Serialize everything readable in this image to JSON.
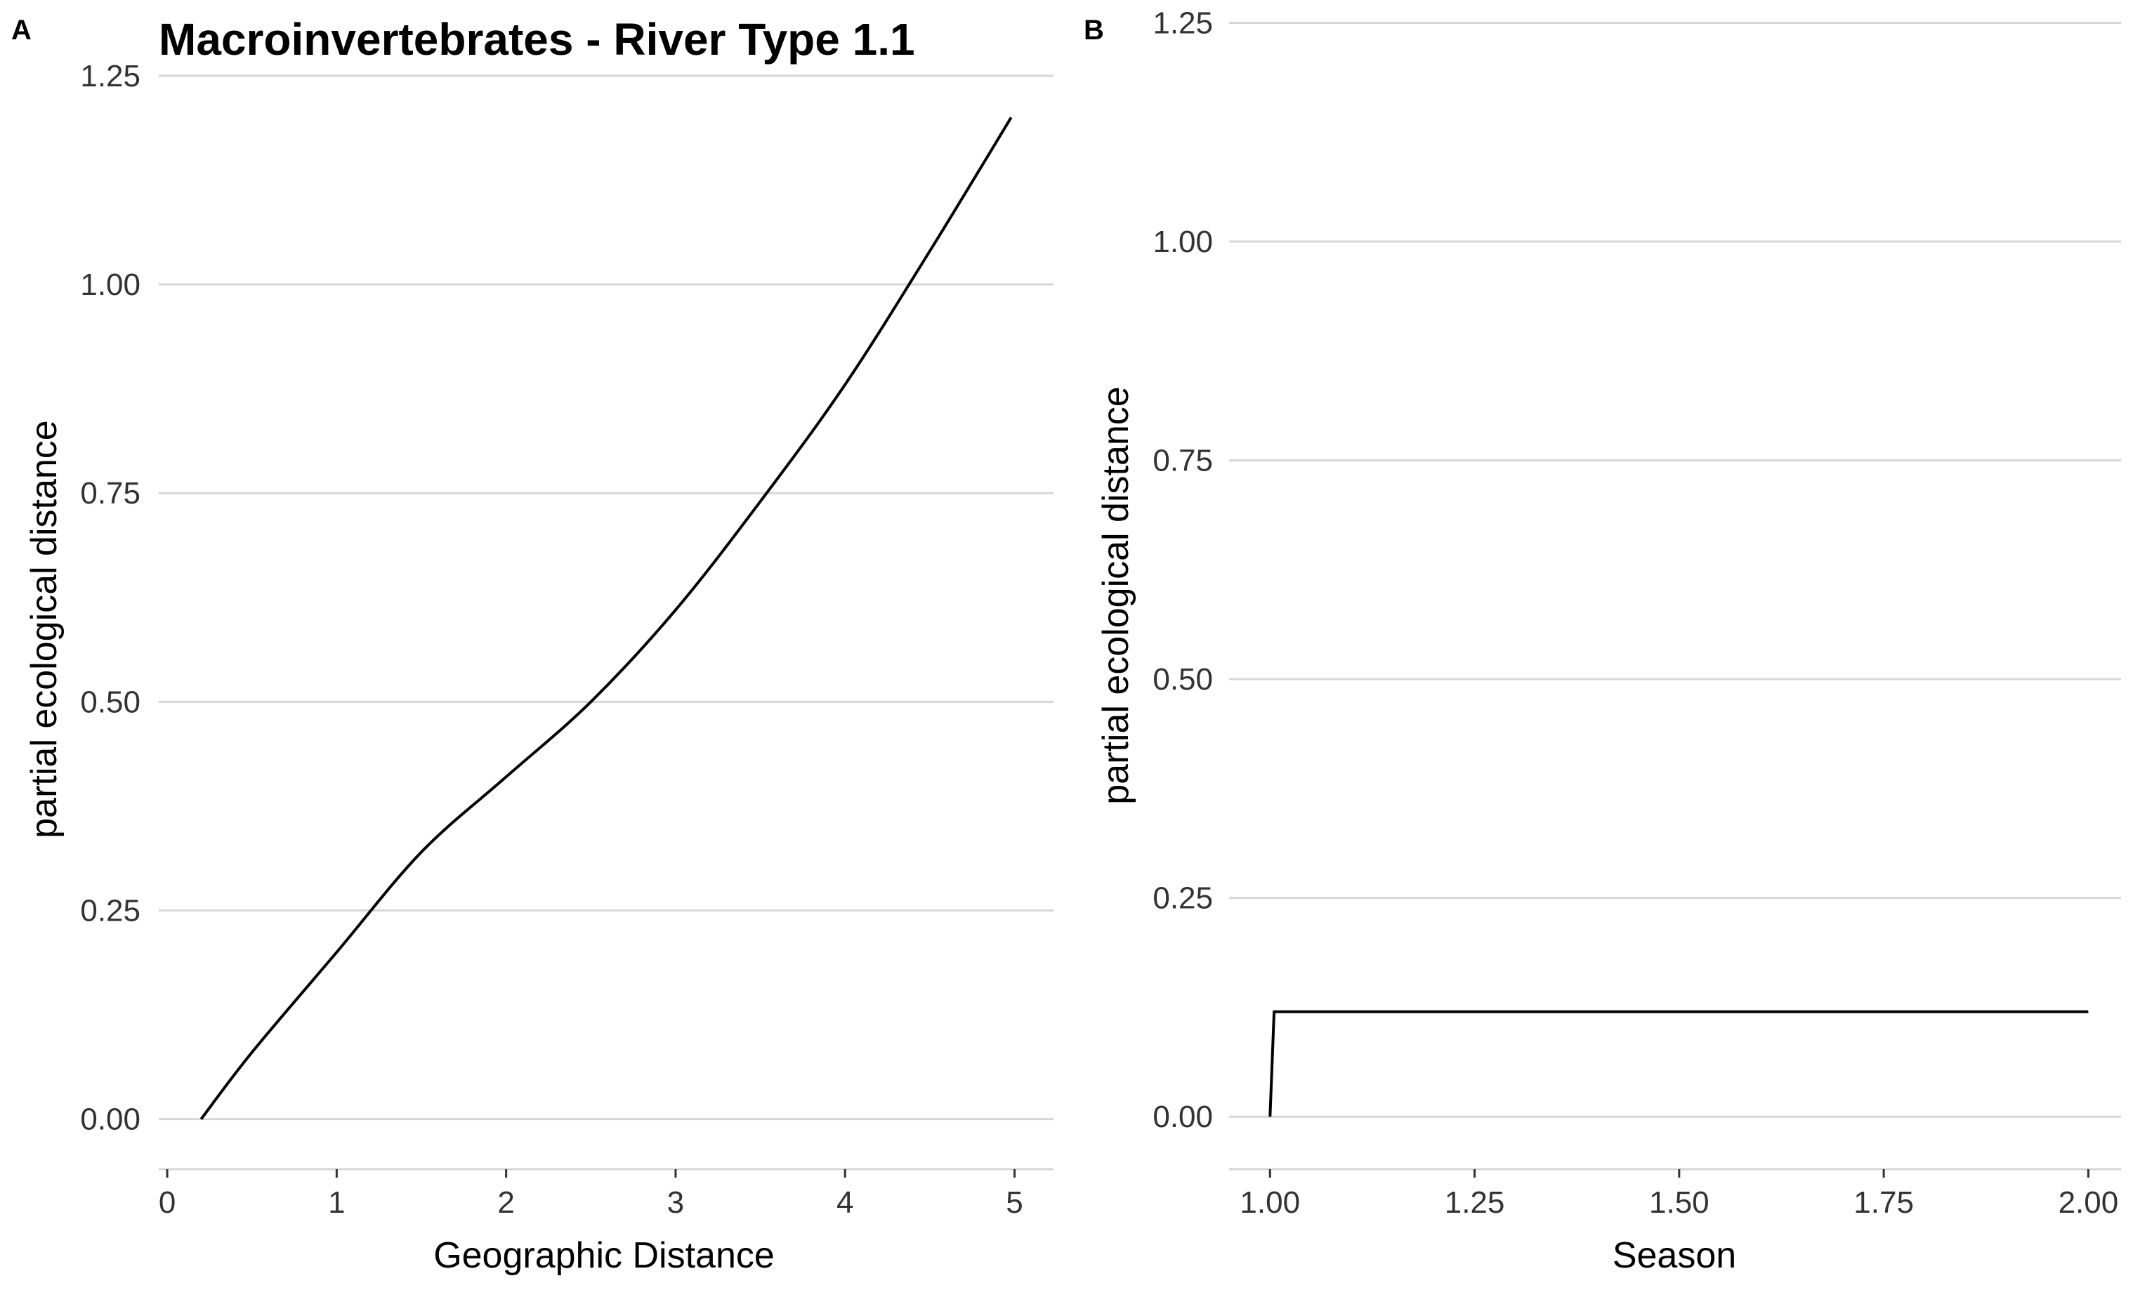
{
  "colors": {
    "line": "#000000",
    "grid": "#d6d6d6",
    "text": "#333333"
  },
  "chart_data": [
    {
      "panel_label": "A",
      "type": "line",
      "title": "Macroinvertebrates - River Type 1.1",
      "xlabel": "Geographic Distance",
      "ylabel": "partial ecological distance",
      "xlim": [
        -0.05,
        5.23
      ],
      "ylim": [
        -0.06,
        1.26
      ],
      "xticks": [
        {
          "value": 0,
          "label": "0"
        },
        {
          "value": 1,
          "label": "1"
        },
        {
          "value": 2,
          "label": "2"
        },
        {
          "value": 3,
          "label": "3"
        },
        {
          "value": 4,
          "label": "4"
        },
        {
          "value": 5,
          "label": "5"
        }
      ],
      "yticks": [
        {
          "value": 0,
          "label": "0.00"
        },
        {
          "value": 0.25,
          "label": "0.25"
        },
        {
          "value": 0.5,
          "label": "0.50"
        },
        {
          "value": 0.75,
          "label": "0.75"
        },
        {
          "value": 1,
          "label": "1.00"
        },
        {
          "value": 1.25,
          "label": "1.25"
        }
      ],
      "grid": "horizontal",
      "x": [
        0.2,
        0.5,
        1.0,
        1.5,
        2.0,
        2.5,
        3.0,
        3.5,
        4.0,
        4.5,
        4.98
      ],
      "y": [
        0.0,
        0.08,
        0.2,
        0.32,
        0.41,
        0.5,
        0.61,
        0.74,
        0.88,
        1.04,
        1.2
      ]
    },
    {
      "panel_label": "B",
      "type": "line",
      "title": "",
      "xlabel": "Season",
      "ylabel": "partial ecological distance",
      "xlim": [
        0.95,
        2.04
      ],
      "ylim": [
        -0.06,
        1.26
      ],
      "xticks": [
        {
          "value": 1.0,
          "label": "1.00"
        },
        {
          "value": 1.25,
          "label": "1.25"
        },
        {
          "value": 1.5,
          "label": "1.50"
        },
        {
          "value": 1.75,
          "label": "1.75"
        },
        {
          "value": 2.0,
          "label": "2.00"
        }
      ],
      "yticks": [
        {
          "value": 0,
          "label": "0.00"
        },
        {
          "value": 0.25,
          "label": "0.25"
        },
        {
          "value": 0.5,
          "label": "0.50"
        },
        {
          "value": 0.75,
          "label": "0.75"
        },
        {
          "value": 1,
          "label": "1.00"
        },
        {
          "value": 1.25,
          "label": "1.25"
        }
      ],
      "grid": "horizontal",
      "x": [
        1.0,
        1.005,
        2.0
      ],
      "y": [
        0.0,
        0.12,
        0.12
      ]
    }
  ]
}
